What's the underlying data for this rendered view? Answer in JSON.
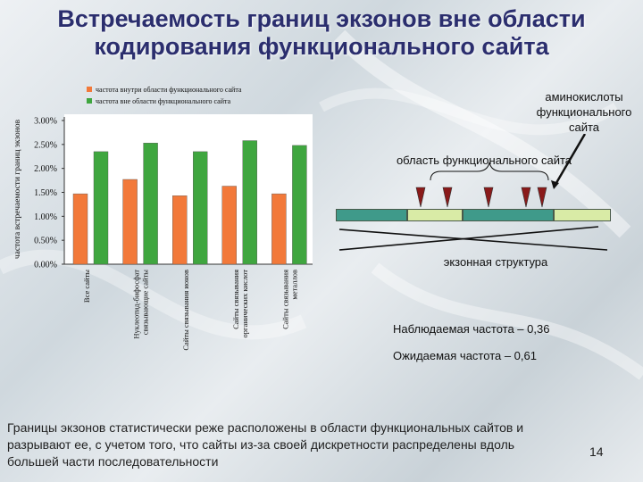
{
  "title": "Встречаемость границ экзонов вне области кодирования функционального сайта",
  "chart_data": {
    "type": "bar",
    "ylabel": "частота встречаемости границ экзонов",
    "ylim": [
      0,
      3.0
    ],
    "yticks": [
      "0.00%",
      "0.50%",
      "1.00%",
      "1.50%",
      "2.00%",
      "2.50%",
      "3.00%"
    ],
    "categories": [
      "Все сайты",
      "Нуклеотид-бифосфат связывающие сайты",
      "Сайты связывания ионов",
      "Сайты связывания органических кислот",
      "Сайты связывания металлов"
    ],
    "series": [
      {
        "name": "частота внутри области функционального сайта",
        "color": "#f2793a",
        "values": [
          1.47,
          1.77,
          1.43,
          1.63,
          1.47
        ]
      },
      {
        "name": "частота вне области функционального сайта",
        "color": "#3fa63f",
        "values": [
          2.35,
          2.53,
          2.35,
          2.58,
          2.48
        ]
      }
    ]
  },
  "diagram": {
    "amino_label": "аминокислоты функционального сайта",
    "region_label": "область функционального сайта",
    "exon_label": "экзонная структура"
  },
  "observed": "Наблюдаемая частота – 0,36",
  "expected": "Ожидаемая частота – 0,61",
  "conclusion": "Границы экзонов статистически реже расположены в области функциональных сайтов и разрывают ее, с учетом того, что сайты из-за своей дискретности распределены вдоль большей части последовательности",
  "page_number": "14"
}
